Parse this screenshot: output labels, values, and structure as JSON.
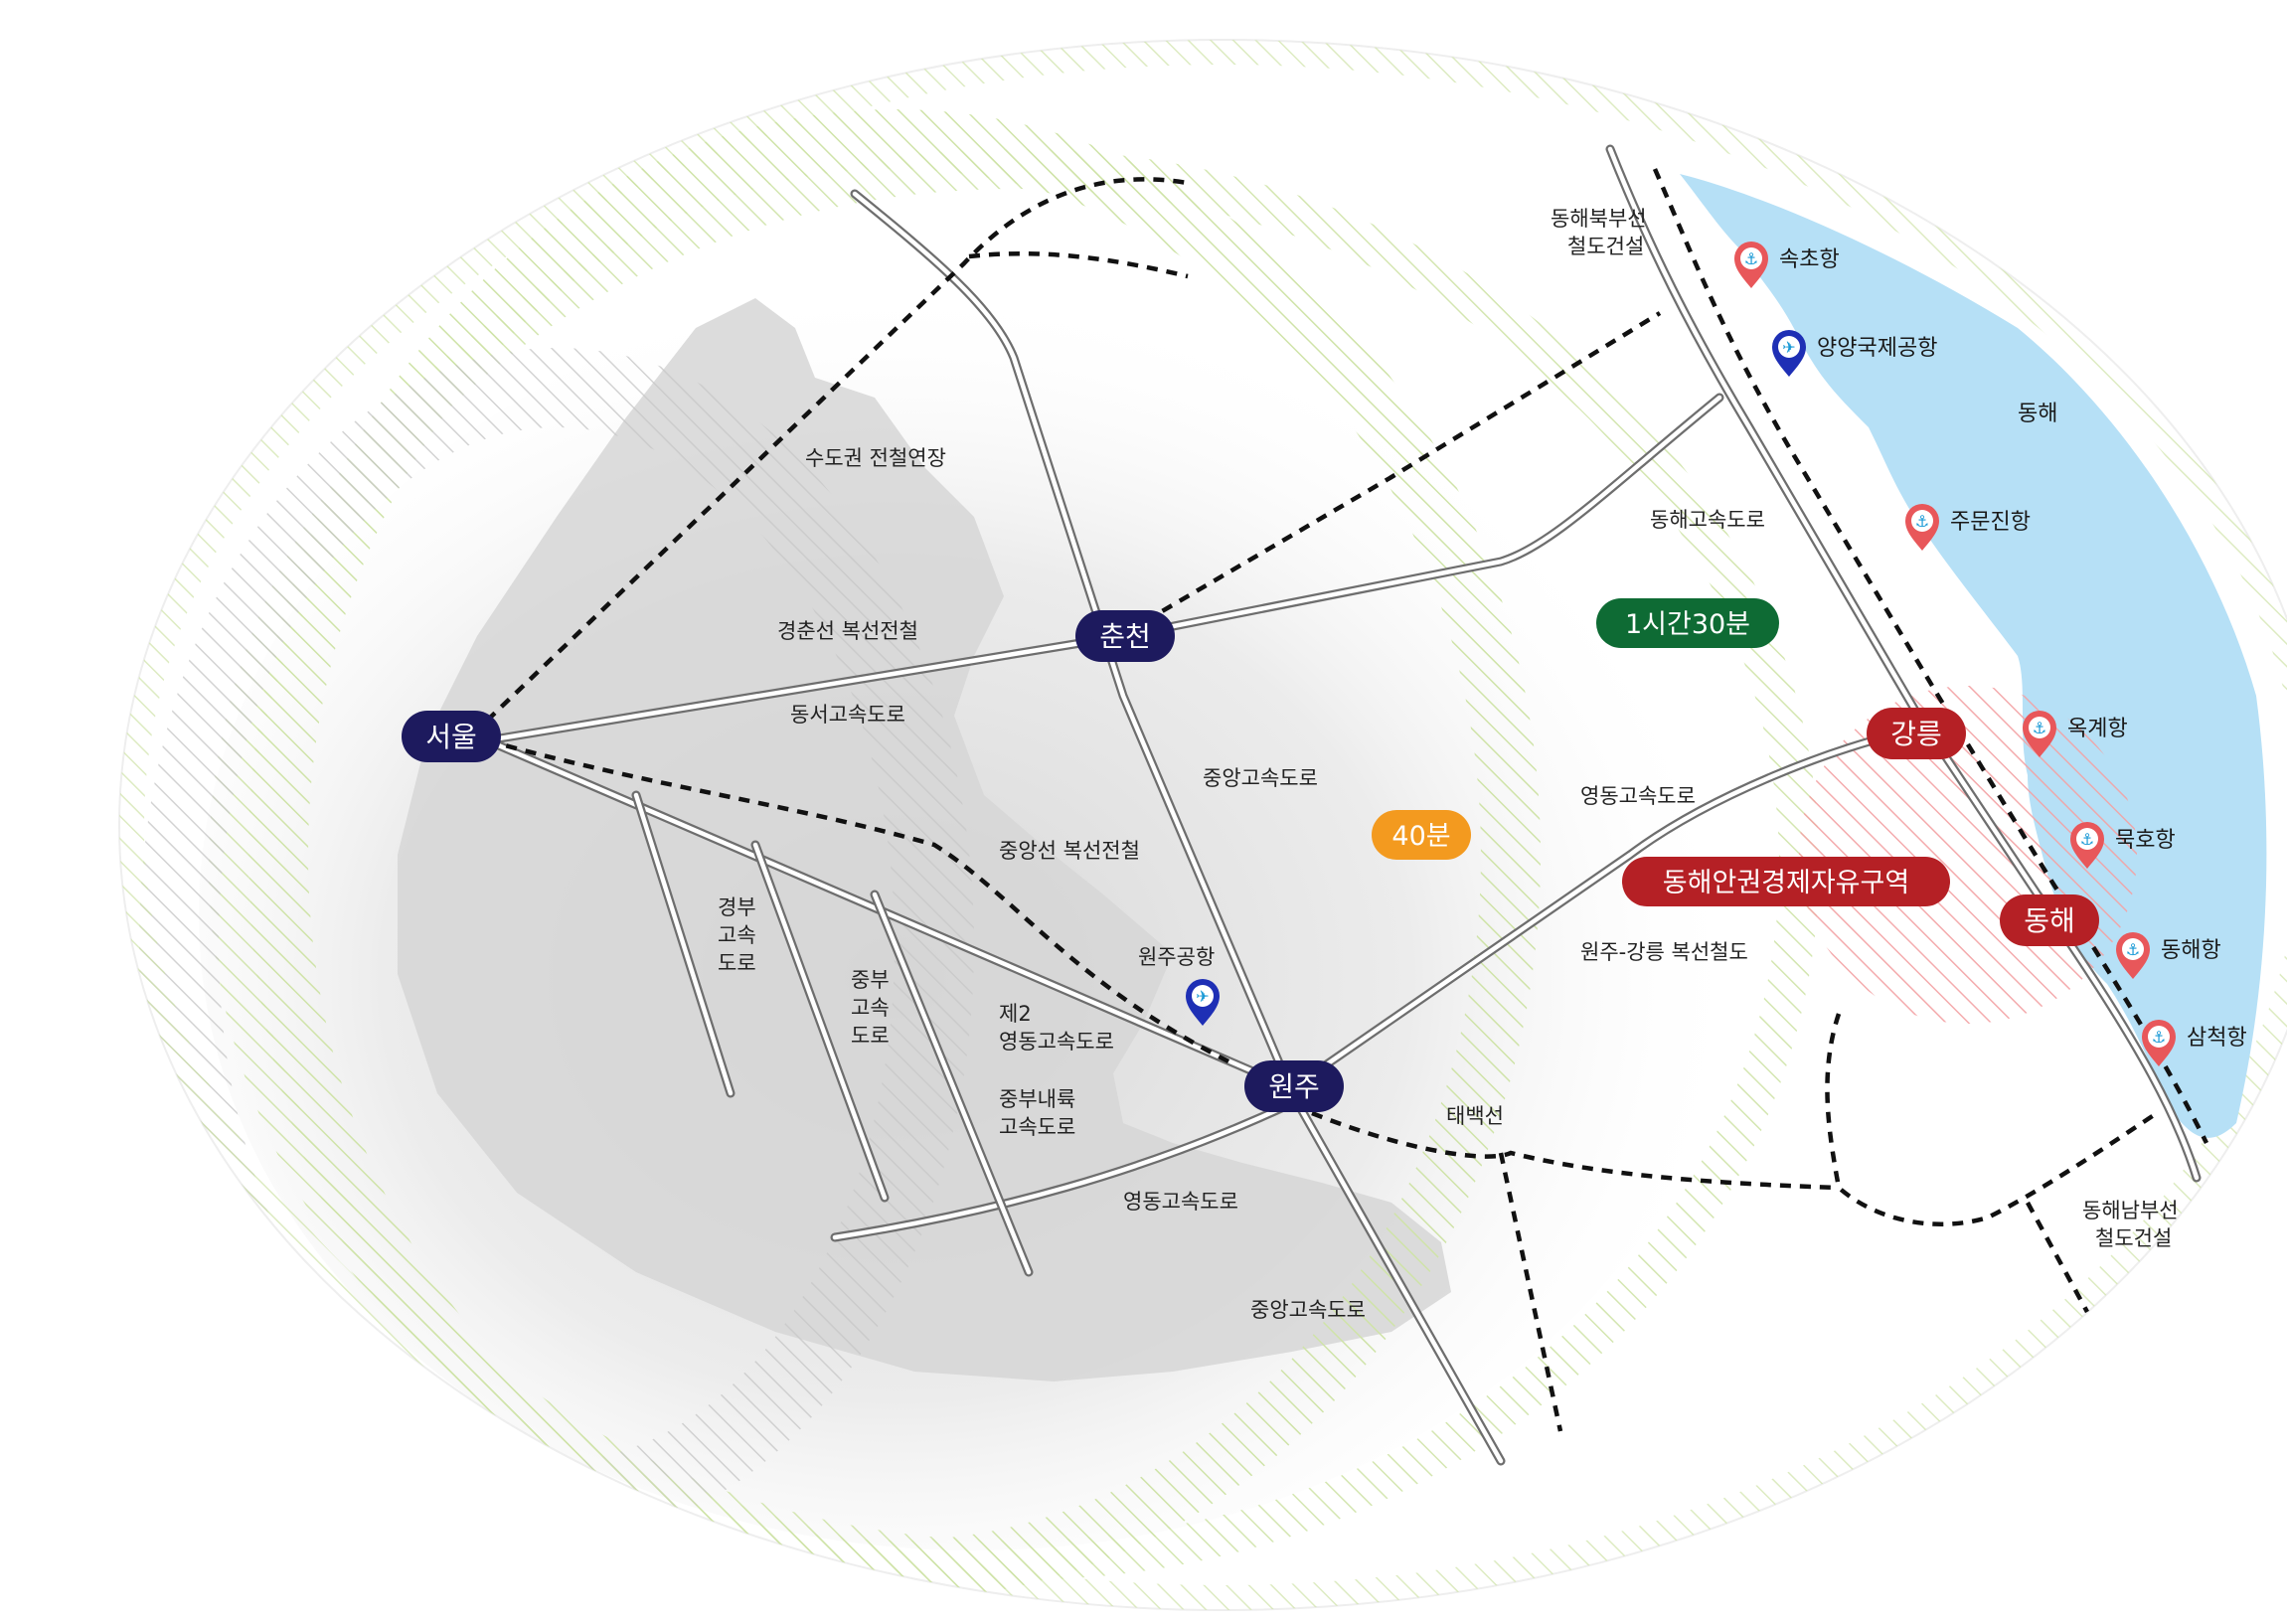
{
  "cities": {
    "seoul": "서울",
    "chuncheon": "춘천",
    "wonju": "원주",
    "gangneung": "강릉",
    "donghae": "동해"
  },
  "badges": {
    "time_90": "1시간30분",
    "time_40": "40분",
    "fez": "동해안권경제자유구역"
  },
  "sea_label": "동해",
  "ports": {
    "sokcho": "속초항",
    "yangyang_airport": "양양국제공항",
    "jumunjin": "주문진항",
    "okgye": "옥계항",
    "mukho": "묵호항",
    "donghae": "동해항",
    "samcheok": "삼척항"
  },
  "wonju_airport": "원주공항",
  "route_labels": {
    "sudogwon": "수도권 전철연장",
    "gyeongchun": "경춘선 복선전철",
    "dongseo": "동서고속도로",
    "jungang_rail": "중앙선 복선전철",
    "jungang_hw1": "중앙고속도로",
    "jungang_hw2": "중앙고속도로",
    "yeongdong1": "영동고속도로",
    "yeongdong2": "영동고속도로",
    "wonju_gangneung": "원주-강릉 복선철도",
    "taebaek": "태백선",
    "donghae_hw": "동해고속도로",
    "donghae_north": [
      "동해북부선",
      "철도건설"
    ],
    "donghae_south": [
      "동해남부선",
      "철도건설"
    ],
    "gyeongbu": [
      "경부",
      "고속",
      "도로"
    ],
    "jungbu": [
      "중부",
      "고속",
      "도로"
    ],
    "yeongdong_2nd": [
      "제2",
      "영동고속도로"
    ],
    "jungbu_inland": [
      "중부내륙",
      "고속도로"
    ]
  },
  "colors": {
    "city_navy": "#1d1a5e",
    "city_red": "#b52025",
    "badge_green": "#0e6b34",
    "badge_orange": "#f39a1f",
    "sea": "#b6e0f6",
    "port_pin": "#e8575a",
    "airport_pin": "#1e2fb5",
    "land_gray": "#d9d9d9"
  },
  "icons": {
    "port": "anchor-icon",
    "airport": "airplane-icon"
  }
}
